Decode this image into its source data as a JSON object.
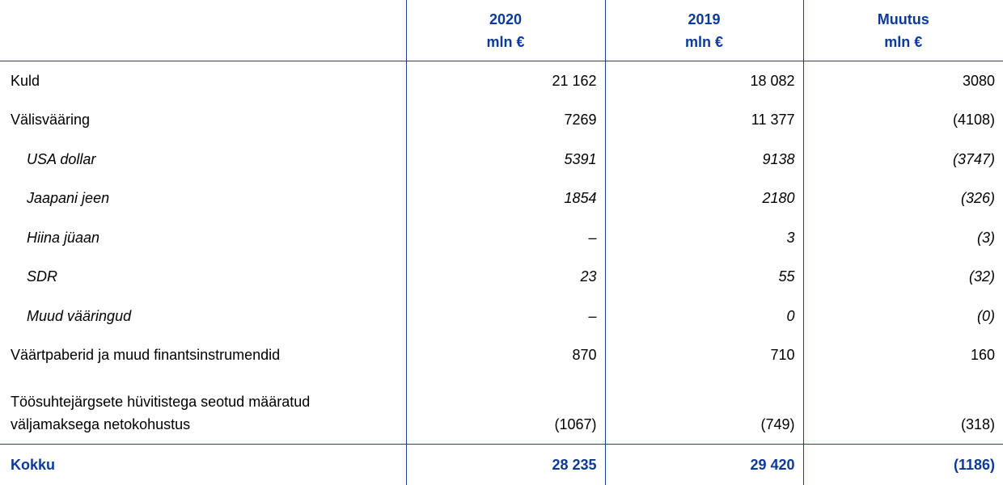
{
  "header": {
    "columns": [
      {
        "year": "2020",
        "unit": "mln €"
      },
      {
        "year": "2019",
        "unit": "mln €"
      },
      {
        "year": "Muutus",
        "unit": "mln €"
      }
    ]
  },
  "rows": [
    {
      "label": "Kuld",
      "v2020": "21 162",
      "v2019": "18 082",
      "change": "3080",
      "italic": false
    },
    {
      "label": "Välisvääring",
      "v2020": "7269",
      "v2019": "11 377",
      "change": "(4108)",
      "italic": false
    },
    {
      "label": "USA dollar",
      "v2020": "5391",
      "v2019": "9138",
      "change": "(3747)",
      "italic": true
    },
    {
      "label": "Jaapani jeen",
      "v2020": "1854",
      "v2019": "2180",
      "change": "(326)",
      "italic": true
    },
    {
      "label": "Hiina jüaan",
      "v2020": "–",
      "v2019": "3",
      "change": "(3)",
      "italic": true
    },
    {
      "label": "SDR",
      "v2020": "23",
      "v2019": "55",
      "change": "(32)",
      "italic": true
    },
    {
      "label": "Muud vääringud",
      "v2020": "–",
      "v2019": "0",
      "change": "(0)",
      "italic": true
    },
    {
      "label": "Väärtpaberid ja muud finantsinstrumendid",
      "v2020": "870",
      "v2019": "710",
      "change": "160",
      "italic": false
    },
    {
      "label_line1": "Töösuhtejärgsete hüvitistega seotud määratud",
      "label_line2": "väljamaksega netokohustus",
      "v2020": "(1067)",
      "v2019": "(749)",
      "change": "(318)",
      "italic": false
    }
  ],
  "total": {
    "label": "Kokku",
    "v2020": "28 235",
    "v2019": "29 420",
    "change": "(1186)"
  },
  "colors": {
    "accent": "#0b3a9a",
    "rule": "#1f3f9a"
  }
}
